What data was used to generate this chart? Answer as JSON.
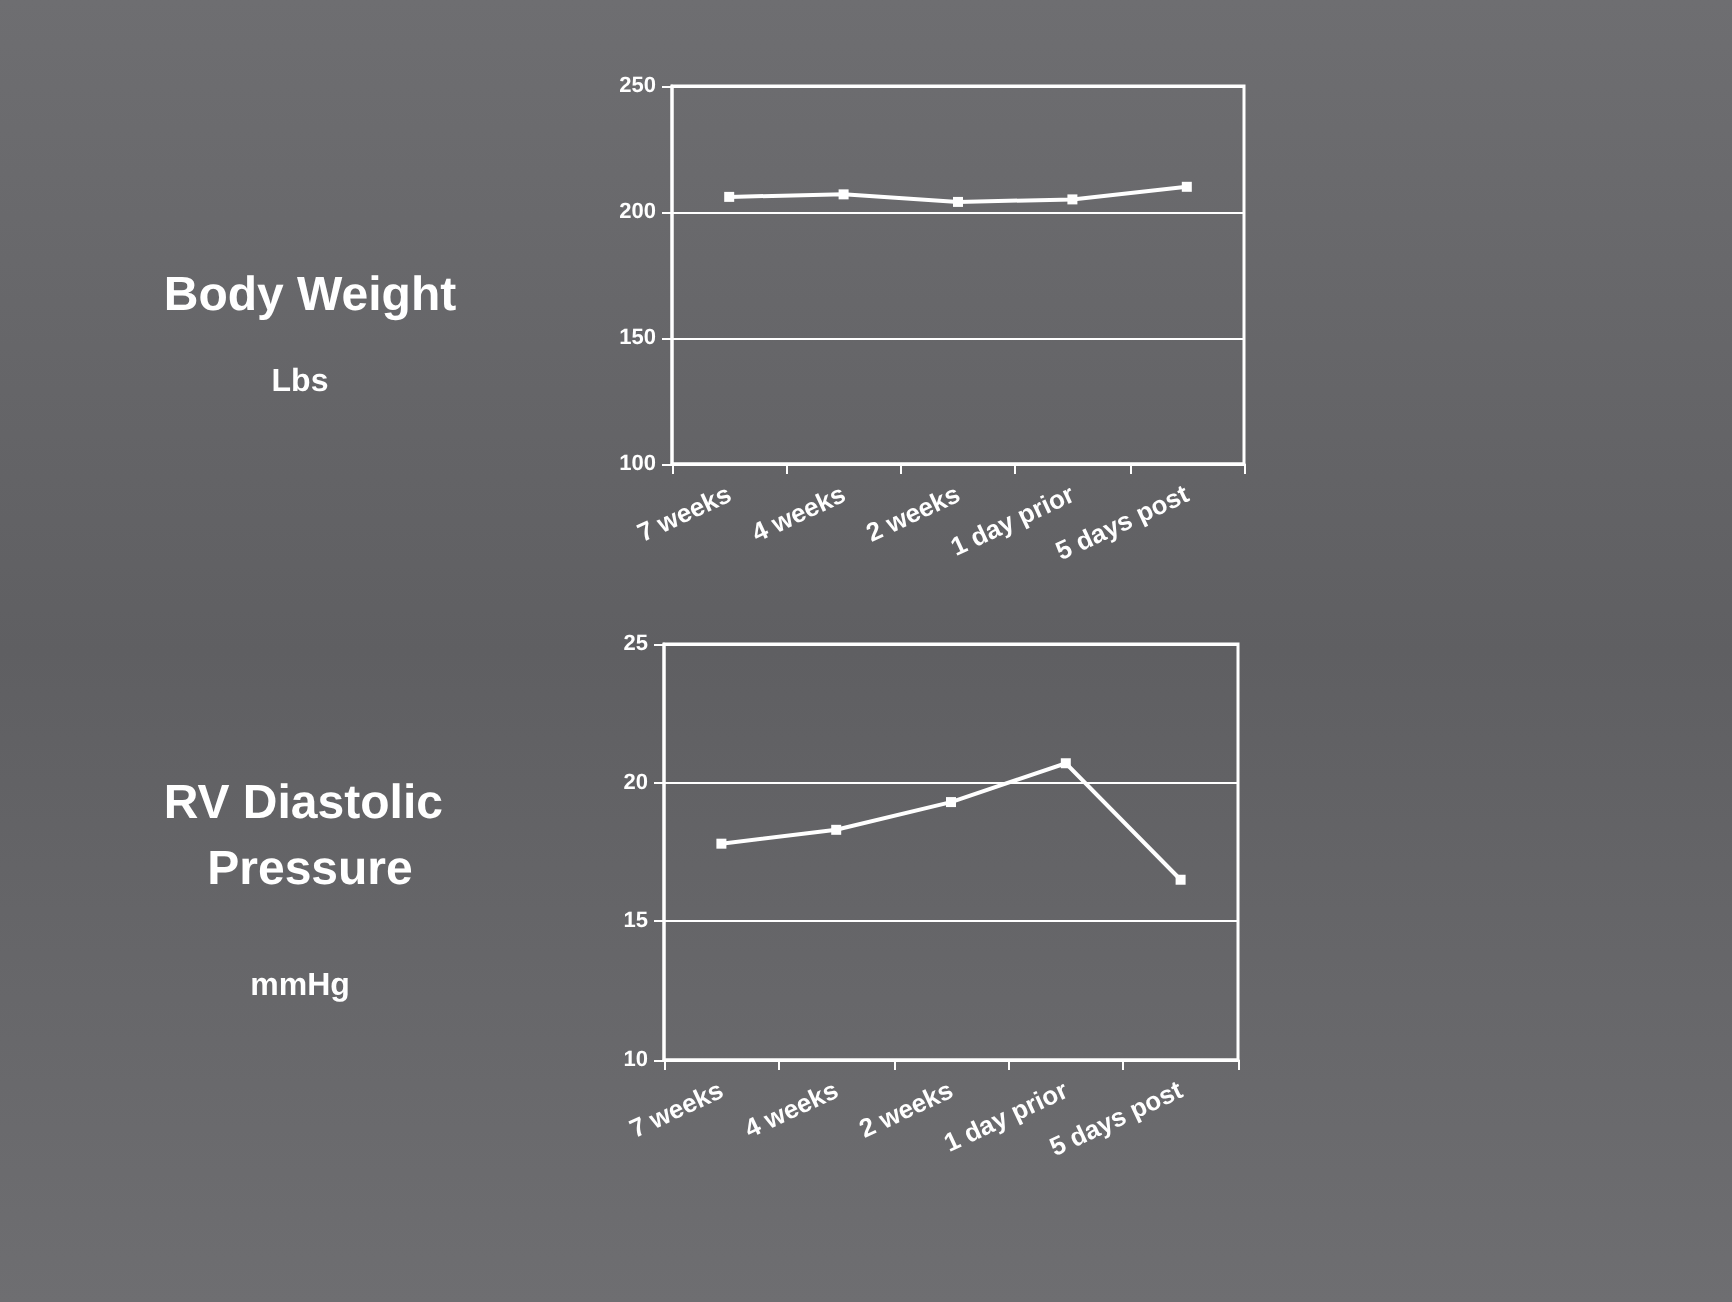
{
  "chart_data": [
    {
      "type": "line",
      "title": "Body Weight",
      "ylabel": "Lbs",
      "categories": [
        "7 weeks",
        "4 weeks",
        "2 weeks",
        "1 day prior",
        "5 days post"
      ],
      "series": [
        {
          "color": "#ffffff",
          "values": [
            206,
            207,
            204,
            205,
            210
          ]
        }
      ],
      "ylim": [
        100,
        250
      ],
      "yticks": [
        100,
        150,
        200,
        250
      ],
      "grid": "y",
      "marker": "square",
      "line_style": "solid"
    },
    {
      "type": "line",
      "title": "RV Diastolic Pressure",
      "ylabel": "mmHg",
      "categories": [
        "7 weeks",
        "4 weeks",
        "2 weeks",
        "1 day prior",
        "5 days post"
      ],
      "series": [
        {
          "color": "#ffffff",
          "values": [
            17.8,
            18.3,
            19.3,
            20.7,
            16.5
          ]
        }
      ],
      "ylim": [
        10,
        25
      ],
      "yticks": [
        10,
        15,
        20,
        25
      ],
      "grid": "y",
      "marker": "square",
      "line_style": "solid"
    }
  ]
}
